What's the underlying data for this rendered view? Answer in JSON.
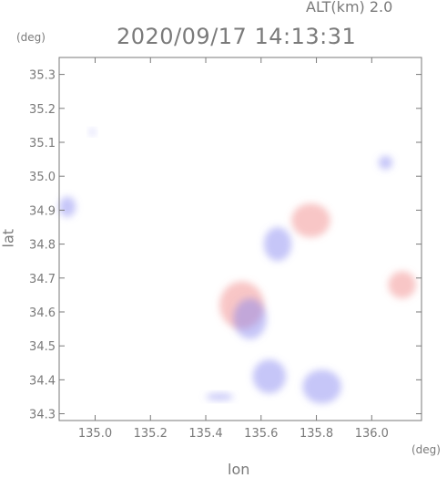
{
  "header": {
    "altitude_label": "ALT(km)  2.0",
    "timestamp": "2020/09/17 14:13:31"
  },
  "axes": {
    "y_unit": "(deg)",
    "x_unit": "(deg)",
    "y_label": "lat",
    "x_label": "lon"
  },
  "chart_data": {
    "type": "heatmap",
    "xlabel": "lon",
    "ylabel": "lat",
    "xlim": [
      134.87,
      136.18
    ],
    "ylim": [
      34.28,
      35.35
    ],
    "x_ticks": [
      "135.0",
      "135.2",
      "135.4",
      "135.6",
      "135.8",
      "136.0"
    ],
    "y_ticks": [
      "34.3",
      "34.4",
      "34.5",
      "34.6",
      "34.7",
      "34.8",
      "34.9",
      "35.0",
      "35.1",
      "35.2",
      "35.3"
    ],
    "x_tick_values": [
      135.0,
      135.2,
      135.4,
      135.6,
      135.8,
      136.0
    ],
    "y_tick_values": [
      34.3,
      34.4,
      34.5,
      34.6,
      34.7,
      34.8,
      34.9,
      35.0,
      35.1,
      35.2,
      35.3
    ],
    "colors": {
      "positive": "#f08080",
      "negative": "#8080f0"
    },
    "regions": [
      {
        "name": "west-edge-blue",
        "lon": 134.9,
        "lat": 34.91,
        "rx": 0.03,
        "ry": 0.03,
        "color": "negative"
      },
      {
        "name": "north-small",
        "lon": 134.99,
        "lat": 35.13,
        "rx": 0.01,
        "ry": 0.008,
        "color": "negative"
      },
      {
        "name": "northeast-small",
        "lon": 136.05,
        "lat": 35.04,
        "rx": 0.025,
        "ry": 0.02,
        "color": "negative"
      },
      {
        "name": "east-red",
        "lon": 136.11,
        "lat": 34.68,
        "rx": 0.05,
        "ry": 0.04,
        "color": "positive"
      },
      {
        "name": "northcentral-red",
        "lon": 135.78,
        "lat": 34.87,
        "rx": 0.07,
        "ry": 0.05,
        "color": "positive"
      },
      {
        "name": "central-mixed-red",
        "lon": 135.53,
        "lat": 34.62,
        "rx": 0.08,
        "ry": 0.07,
        "color": "positive"
      },
      {
        "name": "central-mixed-blue",
        "lon": 135.56,
        "lat": 34.58,
        "rx": 0.06,
        "ry": 0.06,
        "color": "negative"
      },
      {
        "name": "south-blue-1",
        "lon": 135.63,
        "lat": 34.41,
        "rx": 0.06,
        "ry": 0.05,
        "color": "negative"
      },
      {
        "name": "south-blue-2",
        "lon": 135.82,
        "lat": 34.38,
        "rx": 0.07,
        "ry": 0.05,
        "color": "negative"
      },
      {
        "name": "north-mixed",
        "lon": 135.66,
        "lat": 34.8,
        "rx": 0.05,
        "ry": 0.05,
        "color": "negative"
      },
      {
        "name": "south-trail",
        "lon": 135.45,
        "lat": 34.35,
        "rx": 0.05,
        "ry": 0.01,
        "color": "negative"
      }
    ]
  }
}
